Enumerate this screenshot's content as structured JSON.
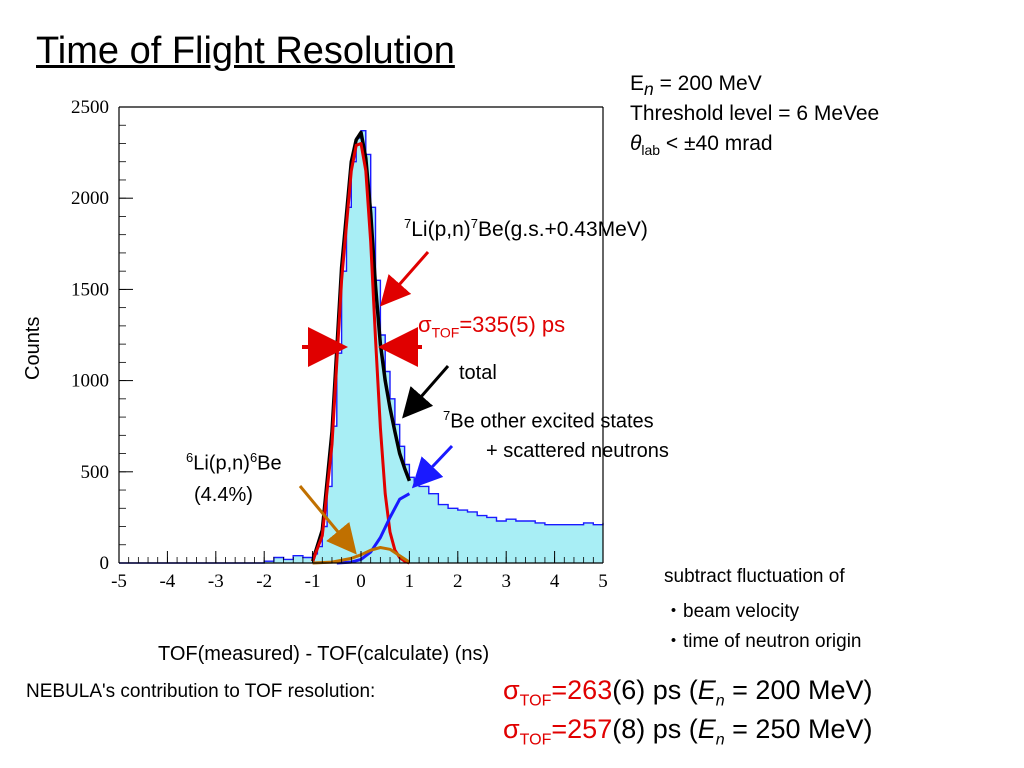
{
  "slide": {
    "title": "Time of Flight Resolution",
    "conditions": {
      "energy": {
        "symbol": "E",
        "sub": "n",
        "rest": " = 200 MeV"
      },
      "threshold": "Threshold level = 6 MeVee",
      "angle": {
        "symbol": "θ",
        "sub": "lab",
        "rest": " < ±40 mrad"
      }
    },
    "annotations": {
      "li7": {
        "sup1": "7",
        "a": "Li(p,n)",
        "sup2": "7",
        "b": "Be(g.s.+0.43MeV)"
      },
      "sigma_main": {
        "sym": "σ",
        "sub": "TOF",
        "rest": "=335(5) ps"
      },
      "total": "total",
      "be7_line1": {
        "sup": "7",
        "text": "Be other excited states"
      },
      "be7_line2": "+ scattered neutrons",
      "li6_line1": {
        "sup1": "6",
        "a": "Li(p,n)",
        "sup2": "6",
        "b": "Be"
      },
      "li6_line2": "(4.4%)"
    },
    "notes": {
      "line1": "subtract fluctuation of",
      "line2": "・beam velocity",
      "line3": "・time of neutron origin"
    },
    "footer": {
      "label": "NEBULA's contribution to TOF resolution:",
      "row1": {
        "sym": "σ",
        "sub": "TOF",
        "eq": "=",
        "value": "263",
        "err": "(6) ps (",
        "E": "E",
        "Esub": "n",
        "tail": " = 200 MeV)"
      },
      "row2": {
        "sym": "σ",
        "sub": "TOF",
        "eq": "=",
        "value": "257",
        "err": "(8) ps (",
        "E": "E",
        "Esub": "n",
        "tail": " = 250 MeV)"
      }
    }
  },
  "chart_data": {
    "type": "line",
    "xlabel": "TOF(measured) - TOF(calculate) (ns)",
    "ylabel": "Counts",
    "xlim": [
      -5,
      5
    ],
    "ylim": [
      0,
      2500
    ],
    "xticks": [
      -5,
      -4,
      -3,
      -2,
      -1,
      0,
      1,
      2,
      3,
      4,
      5
    ],
    "yticks": [
      0,
      500,
      1000,
      1500,
      2000,
      2500
    ],
    "grid": false,
    "colors": {
      "data": "#1a1aff",
      "fill": "#a8eef5",
      "total": "#000000",
      "main": "#e00000",
      "excited": "#1a1aff",
      "li6": "#c07000",
      "arrow_red": "#e00000",
      "arrow_black": "#000000",
      "arrow_blue": "#1a1aff",
      "arrow_brown": "#c07000"
    },
    "series": [
      {
        "role": "data-histogram",
        "x": [
          -5.0,
          -2.2,
          -2.0,
          -1.8,
          -1.6,
          -1.4,
          -1.2,
          -1.0,
          -0.9,
          -0.8,
          -0.7,
          -0.6,
          -0.5,
          -0.4,
          -0.3,
          -0.2,
          -0.1,
          0.0,
          0.1,
          0.2,
          0.3,
          0.4,
          0.5,
          0.6,
          0.7,
          0.8,
          0.9,
          1.0,
          1.1,
          1.2,
          1.4,
          1.6,
          1.8,
          2.0,
          2.2,
          2.4,
          2.6,
          2.8,
          3.0,
          3.2,
          3.4,
          3.6,
          3.8,
          4.0,
          4.2,
          4.4,
          4.6,
          4.8,
          5.0
        ],
        "y": [
          0,
          0,
          10,
          30,
          20,
          40,
          30,
          50,
          90,
          200,
          420,
          750,
          1150,
          1600,
          1950,
          2200,
          2330,
          2370,
          2240,
          1950,
          1550,
          1250,
          1050,
          900,
          760,
          640,
          540,
          470,
          440,
          420,
          380,
          320,
          300,
          290,
          280,
          260,
          250,
          230,
          240,
          230,
          230,
          220,
          210,
          210,
          210,
          210,
          220,
          210,
          220
        ]
      },
      {
        "role": "total",
        "x": [
          -1.0,
          -0.8,
          -0.6,
          -0.4,
          -0.2,
          -0.1,
          0.0,
          0.1,
          0.2,
          0.3,
          0.4,
          0.5,
          0.6,
          0.7,
          0.8,
          0.9,
          1.0
        ],
        "y": [
          10,
          180,
          720,
          1620,
          2200,
          2320,
          2360,
          2220,
          1920,
          1520,
          1200,
          1000,
          850,
          720,
          600,
          520,
          450
        ]
      },
      {
        "role": "main-peak",
        "x": [
          -1.0,
          -0.8,
          -0.6,
          -0.4,
          -0.2,
          -0.1,
          0.0,
          0.1,
          0.2,
          0.3,
          0.4,
          0.5,
          0.6,
          0.7,
          0.8,
          0.9,
          1.0
        ],
        "y": [
          10,
          150,
          650,
          1550,
          2150,
          2290,
          2300,
          2150,
          1760,
          1230,
          740,
          380,
          170,
          70,
          30,
          10,
          0
        ]
      },
      {
        "role": "excited-scattered",
        "x": [
          -0.5,
          -0.2,
          0.0,
          0.2,
          0.4,
          0.6,
          0.8,
          1.0
        ],
        "y": [
          0,
          5,
          20,
          60,
          140,
          250,
          350,
          380
        ]
      },
      {
        "role": "li6",
        "x": [
          -1.0,
          -0.6,
          -0.2,
          0.0,
          0.2,
          0.4,
          0.6,
          0.8,
          1.0
        ],
        "y": [
          0,
          5,
          25,
          45,
          70,
          85,
          75,
          40,
          5
        ]
      }
    ]
  }
}
